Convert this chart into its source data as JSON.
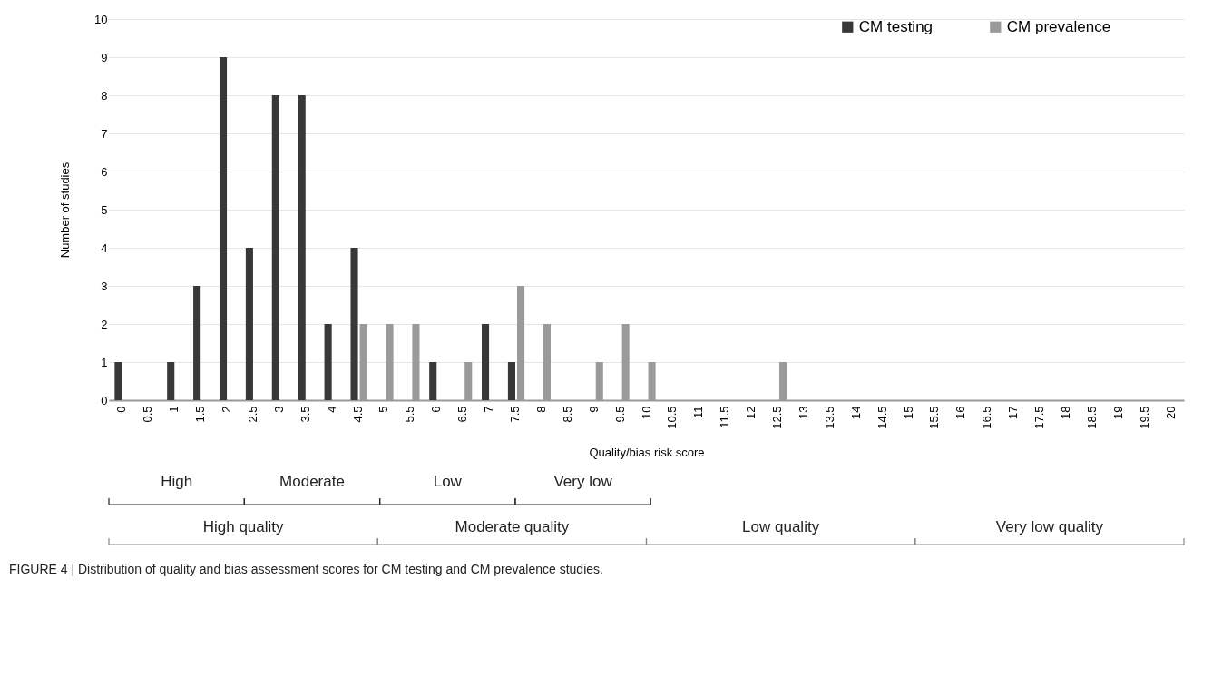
{
  "chart_data": {
    "type": "bar",
    "xlabel": "Quality/bias risk score",
    "ylabel": "Number of studies",
    "categories": [
      "0",
      "0.5",
      "1",
      "1.5",
      "2",
      "2.5",
      "3",
      "3.5",
      "4",
      "4.5",
      "5",
      "5.5",
      "6",
      "6.5",
      "7",
      "7.5",
      "8",
      "8.5",
      "9",
      "9.5",
      "10",
      "10.5",
      "11",
      "11.5",
      "12",
      "12.5",
      "13",
      "13.5",
      "14",
      "14.5",
      "15",
      "15.5",
      "16",
      "16.5",
      "17",
      "17.5",
      "18",
      "18.5",
      "19",
      "19.5",
      "20"
    ],
    "series": [
      {
        "name": "CM testing",
        "color": "#383838",
        "values": [
          1,
          0,
          1,
          3,
          9,
          4,
          8,
          8,
          2,
          4,
          0,
          0,
          1,
          0,
          2,
          1,
          0,
          0,
          0,
          0,
          0,
          0,
          0,
          0,
          0,
          0,
          0,
          0,
          0,
          0,
          0,
          0,
          0,
          0,
          0,
          0,
          0,
          0,
          0,
          0,
          0
        ]
      },
      {
        "name": "CM prevalence",
        "color": "#9a9a9a",
        "values": [
          0,
          0,
          0,
          0,
          0,
          0,
          0,
          0,
          0,
          2,
          2,
          2,
          0,
          1,
          0,
          3,
          2,
          0,
          1,
          2,
          1,
          0,
          0,
          0,
          0,
          1,
          0,
          0,
          0,
          0,
          0,
          0,
          0,
          0,
          0,
          0,
          0,
          0,
          0,
          0,
          0
        ]
      }
    ],
    "ylim": [
      0,
      10
    ],
    "yticks": [
      0,
      1,
      2,
      3,
      4,
      5,
      6,
      7,
      8,
      9,
      10
    ],
    "grid": "y",
    "legend": "top right",
    "annotations": [
      "High",
      "Moderate",
      "Low",
      "Very low",
      "High quality",
      "Moderate quality",
      "Low quality",
      "Very low quality",
      "FIGURE 4 | Distribution of quality and bias assessment scores for CM testing and CM prevalence studies."
    ]
  }
}
